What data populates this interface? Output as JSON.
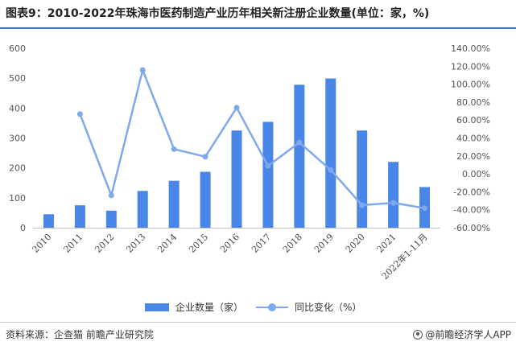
{
  "title": "图表9：2010-2022年珠海市医药制造产业历年相关新注册企业数量(单位：家，%)",
  "source": "资料来源：企查猫 前瞻产业研究院",
  "brand": "@前瞻经济学人APP",
  "colors": {
    "bar": "#4a86e8",
    "line": "#7fa9ee",
    "title_rule": "#3a6fc4"
  },
  "chart_data": {
    "type": "bar+line",
    "categories": [
      "2010",
      "2011",
      "2012",
      "2013",
      "2014",
      "2015",
      "2016",
      "2017",
      "2018",
      "2019",
      "2020",
      "2021",
      "2022年1-11月"
    ],
    "series": [
      {
        "name": "企业数量（家）",
        "type": "bar",
        "axis": "left",
        "values": [
          45,
          75,
          57,
          123,
          157,
          187,
          325,
          354,
          478,
          499,
          325,
          220,
          136
        ]
      },
      {
        "name": "同比变化（%）",
        "type": "line",
        "axis": "right",
        "values": [
          null,
          66.7,
          -24.0,
          115.8,
          27.6,
          19.1,
          73.8,
          8.9,
          35.0,
          4.4,
          -34.9,
          -32.3,
          -38.2
        ]
      }
    ],
    "y_left": {
      "range": [
        0,
        600
      ],
      "ticks": [
        "0",
        "100",
        "200",
        "300",
        "400",
        "500",
        "600"
      ]
    },
    "y_right": {
      "range": [
        -60,
        140
      ],
      "ticks": [
        "-60.00%",
        "-40.00%",
        "-20.00%",
        "0.00%",
        "20.00%",
        "40.00%",
        "60.00%",
        "80.00%",
        "100.00%",
        "120.00%",
        "140.00%"
      ]
    },
    "legend_position": "bottom",
    "grid": false
  }
}
